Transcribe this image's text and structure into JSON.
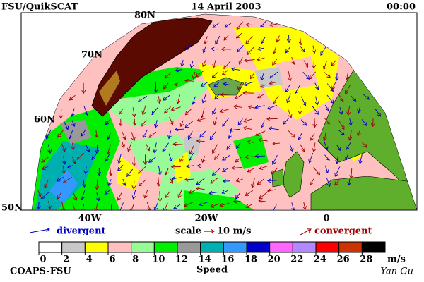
{
  "header": {
    "left": "FSU/QuikSCAT",
    "date": "14 April 2003",
    "time": "00:00"
  },
  "map": {
    "lat_labels": [
      "80N",
      "70N",
      "60N",
      "50N"
    ],
    "lon_labels": [
      "40W",
      "20W",
      "0"
    ]
  },
  "legend": {
    "divergent": "divergent",
    "scale": "scale",
    "scale_value": "10 m/s",
    "convergent": "convergent"
  },
  "colorbar": {
    "ticks": [
      0,
      2,
      4,
      6,
      8,
      10,
      12,
      14,
      16,
      18,
      20,
      22,
      24,
      26,
      28
    ],
    "colors": [
      "#ffffff",
      "#c8c8c8",
      "#ffff00",
      "#ffc0c0",
      "#98fb98",
      "#00ee00",
      "#999999",
      "#00b0b0",
      "#3399ff",
      "#0000cc",
      "#ff66ff",
      "#b088ff",
      "#ff0000",
      "#cc3300",
      "#000000"
    ],
    "unit": "m/s",
    "label": "Speed"
  },
  "footer": {
    "left": "COAPS-FSU",
    "right": "Yan Gu"
  }
}
